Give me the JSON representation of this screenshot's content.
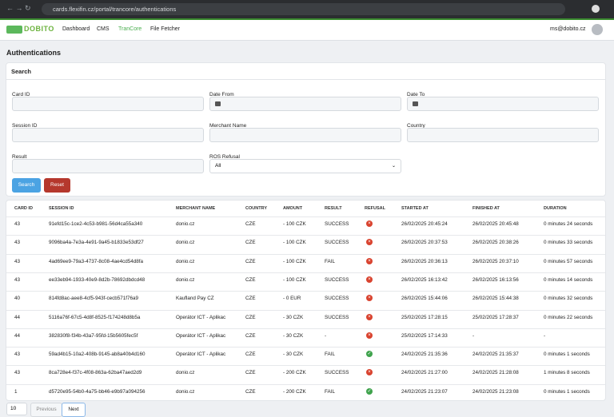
{
  "browser": {
    "url": "cards.flexifin.cz/portal/trancore/authentications"
  },
  "nav": {
    "brand": "DOBITO",
    "links": [
      "Dashboard",
      "CMS",
      "TranCore",
      "File Fetcher"
    ],
    "active": 2,
    "user": "ms@dobito.cz"
  },
  "page": {
    "title": "Authentications"
  },
  "search": {
    "title": "Search",
    "fields": [
      {
        "label": "Card ID",
        "kind": "text"
      },
      {
        "label": "Date From",
        "kind": "date"
      },
      {
        "label": "Date To",
        "kind": "date"
      },
      {
        "label": "Session ID",
        "kind": "text"
      },
      {
        "label": "Merchant Name",
        "kind": "text"
      },
      {
        "label": "Country",
        "kind": "text"
      },
      {
        "label": "Result",
        "kind": "text"
      },
      {
        "label": "ROS Refusal",
        "kind": "select",
        "value": "All"
      }
    ],
    "buttons": [
      "Search",
      "Reset"
    ]
  },
  "table": {
    "headers": [
      "CARD ID",
      "SESSION ID",
      "MERCHANT NAME",
      "COUNTRY",
      "AMOUNT",
      "RESULT",
      "REFUSAL",
      "STARTED AT",
      "FINISHED AT",
      "DURATION"
    ],
    "rows": [
      [
        "43",
        "91efd15c-1ce2-4c53-b981-56d4ca55a340",
        "donio.cz",
        "CZE",
        "- 100 CZK",
        "SUCCESS",
        false,
        "26/02/2025 20:45:24",
        "26/02/2025 20:45:48",
        "0 minutes 24 seconds"
      ],
      [
        "43",
        "9096ba4a-7e3a-4e91-9a45-b1833e53df27",
        "donio.cz",
        "CZE",
        "- 100 CZK",
        "SUCCESS",
        false,
        "26/02/2025 20:37:53",
        "26/02/2025 20:38:26",
        "0 minutes 33 seconds"
      ],
      [
        "43",
        "4ad69ee9-79a3-4737-8c08-4ae4cd54d8fa",
        "donio.cz",
        "CZE",
        "- 100 CZK",
        "FAIL",
        false,
        "26/02/2025 20:36:13",
        "26/02/2025 20:37:10",
        "0 minutes 57 seconds"
      ],
      [
        "43",
        "ee33eb94-1933-40e9-8d2b-78692dbdcd48",
        "donio.cz",
        "CZE",
        "- 100 CZK",
        "SUCCESS",
        false,
        "26/02/2025 16:13:42",
        "26/02/2025 16:13:56",
        "0 minutes 14 seconds"
      ],
      [
        "40",
        "814fd8ac-aee8-4cf5-943f-cecb571f76a9",
        "Kaufland Pay CZ",
        "CZE",
        "- 0 EUR",
        "SUCCESS",
        false,
        "26/02/2025 15:44:06",
        "26/02/2025 15:44:38",
        "0 minutes 32 seconds"
      ],
      [
        "44",
        "5116a76f-67c5-4d8f-8525-f174248d8b5a",
        "Operátor ICT - Aplikac",
        "CZE",
        "- 30 CZK",
        "SUCCESS",
        false,
        "25/02/2025 17:28:15",
        "25/02/2025 17:28:37",
        "0 minutes 22 seconds"
      ],
      [
        "44",
        "382830f8-f34b-43a7-95fd-15b5605fec5f",
        "Operátor ICT - Aplikac",
        "CZE",
        "- 30 CZK",
        "-",
        false,
        "25/02/2025 17:14:33",
        "-",
        "-"
      ],
      [
        "43",
        "59ad4b15-10a2-408b-9145-ab8a40b4d160",
        "Operátor ICT - Aplikac",
        "CZE",
        "- 30 CZK",
        "FAIL",
        true,
        "24/02/2025 21:35:36",
        "24/02/2025 21:35:37",
        "0 minutes 1 seconds"
      ],
      [
        "43",
        "8ca728e4-f37c-4f08-863a-62ba47aed2d9",
        "donio.cz",
        "CZE",
        "- 200 CZK",
        "SUCCESS",
        false,
        "24/02/2025 21:27:00",
        "24/02/2025 21:28:08",
        "1 minutes 8 seconds"
      ],
      [
        "1",
        "d5720e95-54b0-4a75-bb46-e9b97a094256",
        "donio.cz",
        "CZE",
        "- 200 CZK",
        "FAIL",
        true,
        "24/02/2025 21:23:07",
        "24/02/2025 21:23:08",
        "0 minutes 1 seconds"
      ]
    ]
  },
  "pagination": {
    "page_size": "10",
    "previous": "Previous",
    "next": "Next"
  }
}
